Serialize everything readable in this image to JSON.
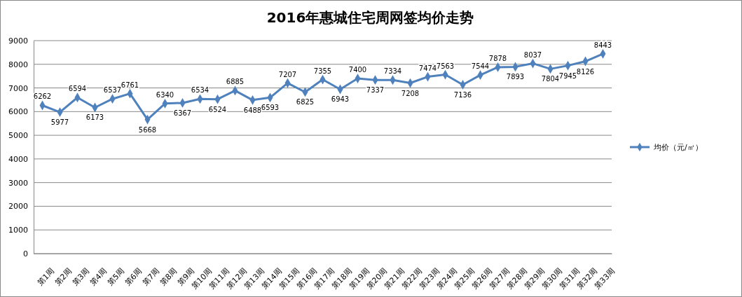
{
  "chart_data": {
    "type": "line",
    "title": "2016年惠城住宅周网签均价走势",
    "categories": [
      "第1周",
      "第2周",
      "第3周",
      "第4周",
      "第5周",
      "第6周",
      "第7周",
      "第8周",
      "第9周",
      "第10周",
      "第11周",
      "第12周",
      "第13周",
      "第14周",
      "第15周",
      "第16周",
      "第17周",
      "第18周",
      "第19周",
      "第20周",
      "第21周",
      "第22周",
      "第23周",
      "第24周",
      "第25周",
      "第26周",
      "第27周",
      "第28周",
      "第29周",
      "第30周",
      "第31周",
      "第32周",
      "第33周"
    ],
    "series": [
      {
        "name": "均价（元/㎡）",
        "color": "#4f81bd",
        "values": [
          6262,
          5977,
          6594,
          6173,
          6537,
          6761,
          5668,
          6340,
          6367,
          6534,
          6524,
          6885,
          6488,
          6593,
          7207,
          6825,
          7355,
          6943,
          7400,
          7337,
          7334,
          7208,
          7474,
          7563,
          7136,
          7544,
          7878,
          7893,
          8037,
          7804,
          7945,
          8126,
          8443
        ]
      }
    ],
    "ylim": [
      0,
      9000
    ],
    "yticks": [
      0,
      1000,
      2000,
      3000,
      4000,
      5000,
      6000,
      7000,
      8000,
      9000
    ],
    "grid": "y",
    "legend": "right",
    "marker": "diamond",
    "line_style": "solid",
    "data_labels": true
  }
}
